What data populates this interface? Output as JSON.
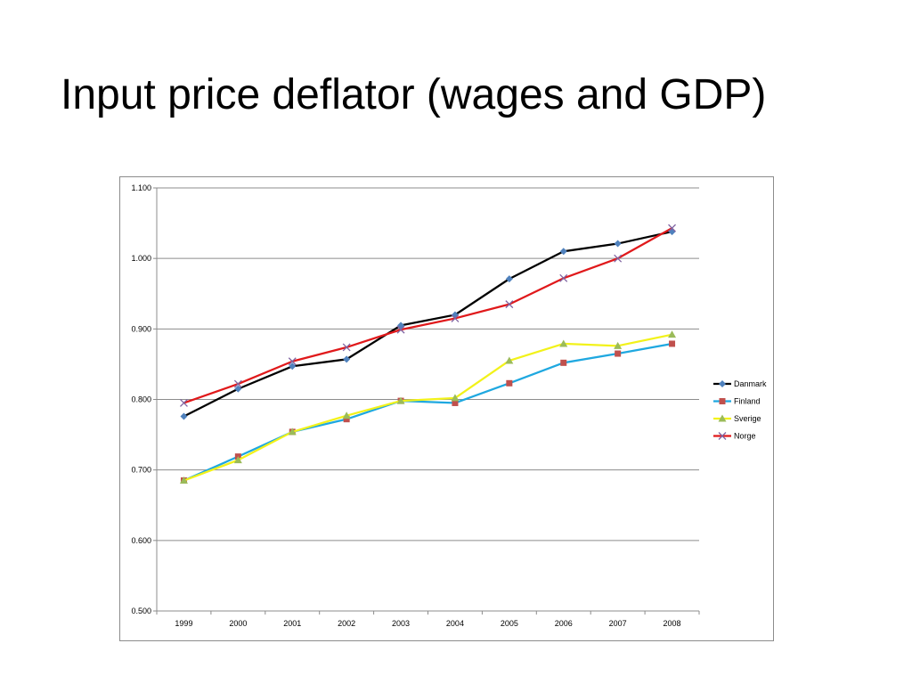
{
  "slide": {
    "title": "Input price deflator (wages and GDP)"
  },
  "chart_data": {
    "type": "line",
    "title": "",
    "xlabel": "",
    "ylabel": "",
    "categories": [
      "1999",
      "2000",
      "2001",
      "2002",
      "2003",
      "2004",
      "2005",
      "2006",
      "2007",
      "2008"
    ],
    "ylim": [
      0.5,
      1.1
    ],
    "yticks": [
      0.5,
      0.6,
      0.7,
      0.8,
      0.9,
      1.0,
      1.1
    ],
    "ytick_labels": [
      "0.500",
      "0.600",
      "0.700",
      "0.800",
      "0.900",
      "1.000",
      "1.100"
    ],
    "grid": "horizontal",
    "legend_position": "right",
    "series": [
      {
        "name": "Danmark",
        "color": "#000000",
        "marker": "diamond",
        "marker_color": "#4f81bd",
        "values": [
          0.776,
          0.815,
          0.847,
          0.857,
          0.905,
          0.92,
          0.971,
          1.01,
          1.021,
          1.038
        ]
      },
      {
        "name": "Finland",
        "color": "#1fa8e0",
        "marker": "square",
        "marker_color": "#c0504d",
        "values": [
          0.685,
          0.719,
          0.754,
          0.772,
          0.798,
          0.795,
          0.823,
          0.852,
          0.865,
          0.879
        ]
      },
      {
        "name": "Sverige",
        "color": "#f2f21a",
        "marker": "triangle",
        "marker_color": "#9bbb59",
        "values": [
          0.685,
          0.714,
          0.754,
          0.777,
          0.798,
          0.802,
          0.855,
          0.879,
          0.876,
          0.892
        ]
      },
      {
        "name": "Norge",
        "color": "#e0191b",
        "marker": "x",
        "marker_color": "#8064a2",
        "values": [
          0.795,
          0.822,
          0.854,
          0.874,
          0.899,
          0.915,
          0.935,
          0.972,
          1.0,
          1.043
        ]
      }
    ]
  }
}
